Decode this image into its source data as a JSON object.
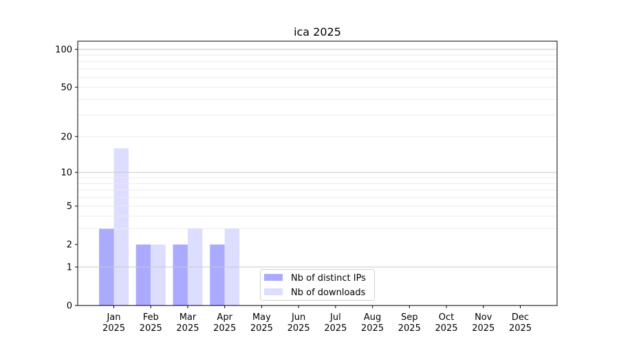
{
  "chart_data": {
    "type": "bar",
    "title": "ica 2025",
    "xlabel": "",
    "ylabel": "",
    "yscale": "log(1+y)",
    "ylim": [
      0,
      116
    ],
    "yticks": [
      0,
      1,
      2,
      5,
      10,
      20,
      50,
      100
    ],
    "grid": true,
    "legend_position": "bottom-center",
    "categories": [
      "Jan\n2025",
      "Feb\n2025",
      "Mar\n2025",
      "Apr\n2025",
      "May\n2025",
      "Jun\n2025",
      "Jul\n2025",
      "Aug\n2025",
      "Sep\n2025",
      "Oct\n2025",
      "Nov\n2025",
      "Dec\n2025"
    ],
    "series": [
      {
        "name": "Nb of distinct IPs",
        "color": "#aaaaff",
        "values": [
          3,
          2,
          2,
          2,
          0,
          0,
          0,
          0,
          0,
          0,
          0,
          0
        ]
      },
      {
        "name": "Nb of downloads",
        "color": "#ddddff",
        "values": [
          16,
          2,
          3,
          3,
          0,
          0,
          0,
          0,
          0,
          0,
          0,
          0
        ]
      }
    ]
  }
}
